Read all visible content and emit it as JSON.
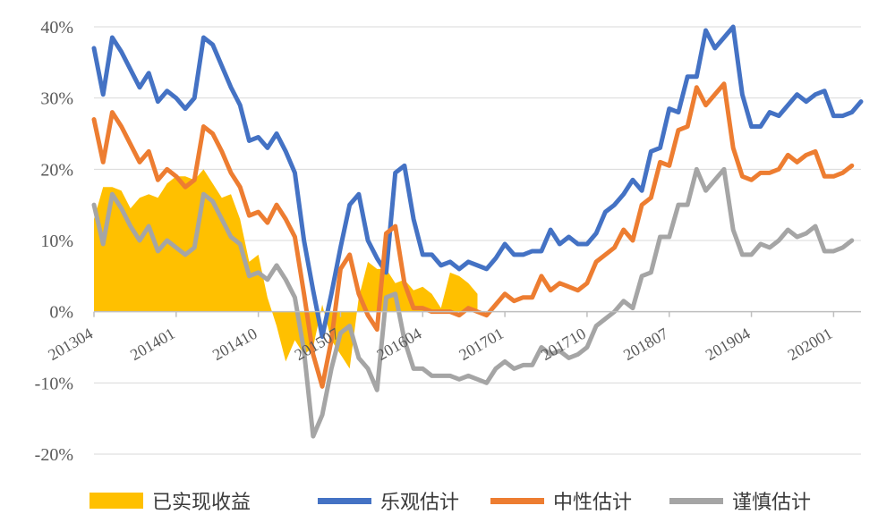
{
  "chart_data": {
    "type": "line",
    "y_ticks": [
      "40%",
      "30%",
      "20%",
      "10%",
      "0%",
      "-10%",
      "-20%"
    ],
    "y_tick_values": [
      40,
      30,
      20,
      10,
      0,
      -10,
      -20
    ],
    "ylim": [
      -20,
      40
    ],
    "grid": true,
    "legend_position": "bottom",
    "x_ticks": [
      "201304",
      "201401",
      "201410",
      "201507",
      "201604",
      "201701",
      "201710",
      "201807",
      "201904",
      "202001"
    ],
    "x_tick_index": [
      0,
      9,
      18,
      27,
      36,
      45,
      54,
      63,
      72,
      81
    ],
    "series": [
      {
        "name": "已实现收益",
        "type": "area",
        "color": "#FFC000",
        "values": [
          13,
          17.5,
          17.5,
          17,
          14.5,
          16,
          16.5,
          16,
          18,
          19,
          19,
          18.5,
          20,
          18,
          16,
          16.5,
          13,
          7,
          8,
          2,
          -2,
          -7,
          -4,
          -6,
          -5,
          1,
          -4,
          -6,
          -8,
          2,
          7,
          6,
          6,
          4,
          4.5,
          3,
          3.5,
          2.5,
          0.5,
          5.5,
          5,
          4,
          2.5
        ]
      },
      {
        "name": "乐观估计",
        "type": "line",
        "color": "#4472C4",
        "values": [
          37,
          30.5,
          38.5,
          36.5,
          34,
          31.5,
          33.5,
          29.5,
          31,
          30,
          28.5,
          30,
          38.5,
          37.5,
          34.5,
          31.5,
          29,
          24,
          24.5,
          23,
          25,
          22.5,
          19.5,
          10,
          3,
          -3.5,
          2.5,
          9,
          15,
          16.5,
          10,
          7.5,
          5.5,
          19.5,
          20.5,
          13,
          8,
          8,
          6.5,
          7,
          6,
          7,
          6.5,
          6,
          7.5,
          9.5,
          8,
          8,
          8.5,
          8.5,
          11.5,
          9.5,
          10.5,
          9.5,
          9.5,
          11,
          14,
          15,
          16.5,
          18.5,
          17,
          22.5,
          23,
          28.5,
          28,
          33,
          33,
          39.5,
          37,
          38.5,
          40,
          30.5,
          26,
          26,
          28,
          27.5,
          29,
          30.5,
          29.5,
          30.5,
          31,
          27.5,
          27.5,
          28,
          29.5
        ]
      },
      {
        "name": "中性估计",
        "type": "line",
        "color": "#ED7D31",
        "values": [
          27,
          21,
          28,
          26,
          23.5,
          21,
          22.5,
          18.5,
          20,
          19,
          17.5,
          18.5,
          26,
          25,
          22.5,
          19.5,
          17.5,
          13.5,
          14,
          12.5,
          15,
          13,
          10.5,
          2.5,
          -6,
          -10.5,
          -4,
          6,
          8,
          2.5,
          -0.5,
          -2.5,
          11,
          12,
          4,
          0.5,
          0.5,
          0,
          0,
          0,
          -0.5,
          0.5,
          0,
          -0.5,
          1,
          2.5,
          1.5,
          2,
          2,
          5,
          3,
          4,
          3.5,
          3,
          4,
          7,
          8,
          9,
          11.5,
          10,
          15,
          16,
          21,
          20.5,
          25.5,
          26,
          31.5,
          29,
          30.5,
          32,
          23,
          19,
          18.5,
          19.5,
          19.5,
          20,
          22,
          21,
          22,
          22.5,
          19,
          19,
          19.5,
          20.5
        ]
      },
      {
        "name": "谨慎估计",
        "type": "line",
        "color": "#A5A5A5",
        "values": [
          15,
          9.5,
          16.5,
          14.5,
          12,
          10,
          12,
          8.5,
          10,
          9,
          8,
          9,
          16.5,
          15.5,
          13,
          10.5,
          9.5,
          5,
          5.5,
          4.5,
          6.5,
          4.5,
          2,
          -5.5,
          -17.5,
          -14.5,
          -8,
          -3,
          -2,
          -6.5,
          -8,
          -11,
          2,
          2.5,
          -4,
          -8,
          -8,
          -9,
          -9,
          -9,
          -9.5,
          -9,
          -9.5,
          -10,
          -8,
          -7,
          -8,
          -7.5,
          -7.5,
          -5,
          -6,
          -5.5,
          -6.5,
          -6,
          -5,
          -2,
          -1,
          0,
          1.5,
          0.5,
          5,
          5.5,
          10.5,
          10.5,
          15,
          15,
          20,
          17,
          18.5,
          20,
          11.5,
          8,
          8,
          9.5,
          9,
          10,
          11.5,
          10.5,
          11,
          12,
          8.5,
          8.5,
          9,
          10
        ]
      }
    ]
  }
}
